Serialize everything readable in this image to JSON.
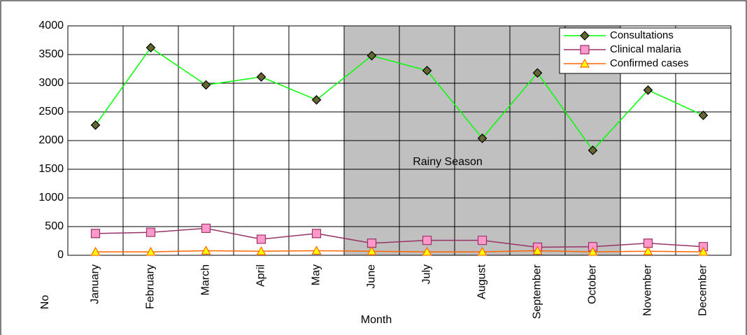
{
  "chart_data": {
    "type": "line",
    "categories": [
      "January",
      "February",
      "March",
      "April",
      "May",
      "June",
      "July",
      "August",
      "September",
      "October",
      "November",
      "December"
    ],
    "series": [
      {
        "name": "Consultations",
        "color": "#00ff00",
        "marker": "diamond",
        "marker_color": "#666633",
        "values": [
          2270,
          3620,
          2970,
          3110,
          2710,
          3480,
          3220,
          2040,
          3180,
          1830,
          2880,
          2440
        ]
      },
      {
        "name": "Clinical malaria",
        "color": "#993366",
        "marker": "square",
        "marker_color": "#ff99cc",
        "values": [
          380,
          400,
          470,
          280,
          380,
          210,
          260,
          260,
          140,
          150,
          210,
          150
        ]
      },
      {
        "name": "Confirmed cases",
        "color": "#ff6600",
        "marker": "triangle",
        "marker_color": "#ffff00",
        "values": [
          60,
          60,
          80,
          70,
          80,
          70,
          60,
          60,
          80,
          60,
          70,
          60
        ]
      }
    ],
    "ylim": [
      0,
      4000
    ],
    "yticks": [
      0,
      500,
      1000,
      1500,
      2000,
      2500,
      3000,
      3500,
      4000
    ],
    "xlabel": "Month",
    "ylabel": "No",
    "grid": true,
    "legend": "upper right",
    "shaded_region": {
      "label": "Rainy Season",
      "start": "June",
      "end": "October",
      "color": "#c0c0c0"
    }
  }
}
